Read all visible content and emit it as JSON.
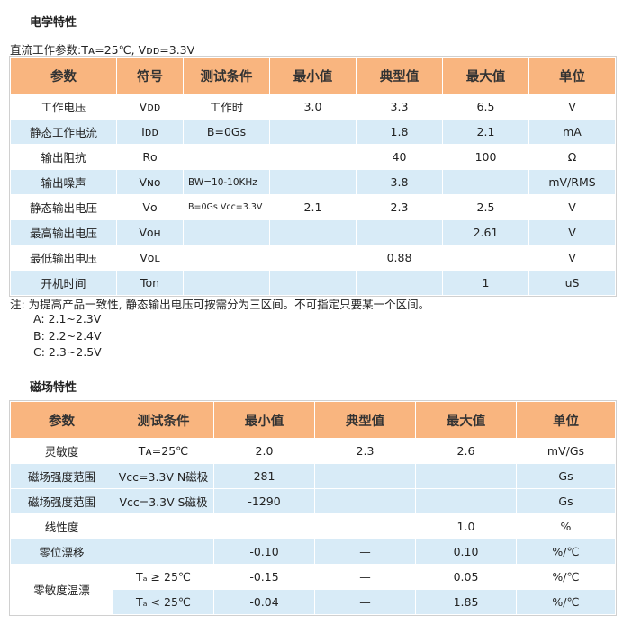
{
  "electrical": {
    "heading": "电学特性",
    "conditions": "直流工作参数:Tᴀ=25℃, Vᴅᴅ=3.3V",
    "headers": [
      "参数",
      "符号",
      "测试条件",
      "最小值",
      "典型值",
      "最大值",
      "单位"
    ],
    "rows": [
      {
        "param": "工作电压",
        "symbol": "Vᴅᴅ",
        "condition": "工作时",
        "min": "3.0",
        "typ": "3.3",
        "max": "6.5",
        "unit": "V"
      },
      {
        "param": "静态工作电流",
        "symbol": "Iᴅᴅ",
        "condition": "B=0Gs",
        "min": "",
        "typ": "1.8",
        "max": "2.1",
        "unit": "mA"
      },
      {
        "param": "输出阻抗",
        "symbol": "Rᴏ",
        "condition": "",
        "min": "",
        "typ": "40",
        "max": "100",
        "unit": "Ω"
      },
      {
        "param": "输出噪声",
        "symbol": "Vɴᴏ",
        "condition": "BW=10-10KHz",
        "min": "",
        "typ": "3.8",
        "max": "",
        "unit": "mV/RMS"
      },
      {
        "param": "静态输出电压",
        "symbol": "Vᴏ",
        "condition": "B=0Gs Vcc=3.3V",
        "min": "2.1",
        "typ": "2.3",
        "max": "2.5",
        "unit": "V"
      },
      {
        "param": "最高输出电压",
        "symbol": "Vᴏʜ",
        "condition": "",
        "min": "",
        "typ": "",
        "max": "2.61",
        "unit": "V"
      },
      {
        "param": "最低输出电压",
        "symbol": "Vᴏʟ",
        "condition": "",
        "min": "",
        "typ": "0.88",
        "max": "",
        "unit": "V"
      },
      {
        "param": "开机时间",
        "symbol": "Ton",
        "condition": "",
        "min": "",
        "typ": "",
        "max": "1",
        "unit": "uS"
      }
    ],
    "note": "注: 为提高产品一致性, 静态输出电压可按需分为三区间。不可指定只要某一个区间。",
    "ranges": [
      "A: 2.1~2.3V",
      "B: 2.2~2.4V",
      "C: 2.3~2.5V"
    ]
  },
  "magnetic": {
    "heading": "磁场特性",
    "headers": [
      "参数",
      "测试条件",
      "最小值",
      "典型值",
      "最大值",
      "单位"
    ],
    "rows": [
      {
        "param": "灵敏度",
        "condition": "Tᴀ=25℃",
        "min": "2.0",
        "typ": "2.3",
        "max": "2.6",
        "unit": "mV/Gs"
      },
      {
        "param": "磁场强度范围",
        "condition": "Vcc=3.3V N磁极",
        "min": "281",
        "typ": "",
        "max": "",
        "unit": "Gs"
      },
      {
        "param": "磁场强度范围",
        "condition": "Vcc=3.3V S磁极",
        "min": "-1290",
        "typ": "",
        "max": "",
        "unit": "Gs"
      },
      {
        "param": "线性度",
        "condition": "",
        "min": "",
        "typ": "",
        "max": "1.0",
        "unit": "%"
      },
      {
        "param": "零位漂移",
        "condition": "",
        "min": "-0.10",
        "typ": "—",
        "max": "0.10",
        "unit": "%/℃"
      }
    ],
    "tempco": {
      "param": "零敏度温漂",
      "rows": [
        {
          "condition": "Tₐ ≥ 25℃",
          "min": "-0.15",
          "typ": "—",
          "max": "0.05",
          "unit": "%/℃"
        },
        {
          "condition": "Tₐ < 25℃",
          "min": "-0.04",
          "typ": "—",
          "max": "1.85",
          "unit": "%/℃"
        }
      ]
    }
  }
}
